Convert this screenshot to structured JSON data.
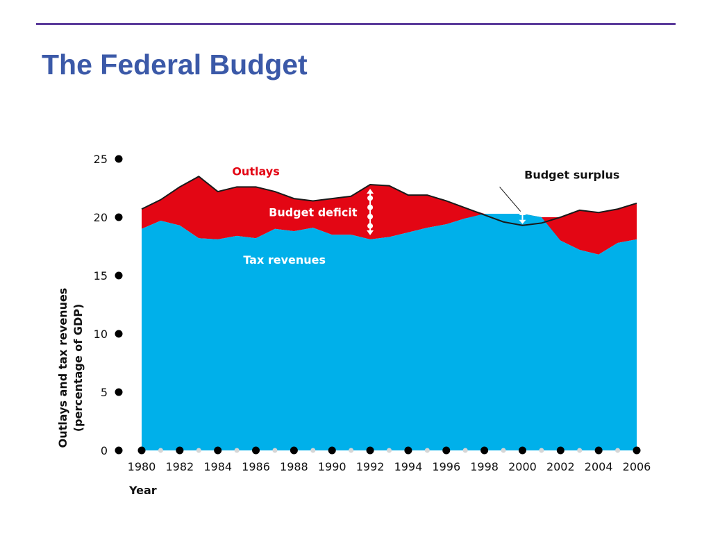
{
  "page": {
    "title": "The Federal Budget"
  },
  "colors": {
    "rule": "#5b3b9b",
    "title": "#3b59a8",
    "tax_revenues": "#00b0ea",
    "deficit": "#e30614",
    "surplus": "#1aa89c",
    "outlays_line": "#1a1a1a"
  },
  "chart_data": {
    "type": "area",
    "title": "",
    "xlabel": "Year",
    "ylabel": "Outlays and tax revenues",
    "ylabel2": "(percentage of GDP)",
    "ylim": [
      0,
      25
    ],
    "xlim": [
      1980,
      2006
    ],
    "y_ticks": [
      0,
      5,
      10,
      15,
      20,
      25
    ],
    "x_ticks": [
      1980,
      1982,
      1984,
      1986,
      1988,
      1990,
      1992,
      1994,
      1996,
      1998,
      2000,
      2002,
      2004,
      2006
    ],
    "x": [
      1980,
      1981,
      1982,
      1983,
      1984,
      1985,
      1986,
      1987,
      1988,
      1989,
      1990,
      1991,
      1992,
      1993,
      1994,
      1995,
      1996,
      1997,
      1998,
      1999,
      2000,
      2001,
      2002,
      2003,
      2004,
      2005,
      2006
    ],
    "series": [
      {
        "name": "Outlays",
        "values": [
          20.7,
          21.5,
          22.6,
          23.5,
          22.2,
          22.6,
          22.6,
          22.2,
          21.6,
          21.4,
          21.6,
          21.8,
          22.8,
          22.7,
          21.9,
          21.9,
          21.4,
          20.8,
          20.2,
          19.6,
          19.3,
          19.5,
          20.0,
          20.6,
          20.4,
          20.7,
          21.2
        ]
      },
      {
        "name": "Tax revenues",
        "values": [
          19.0,
          19.7,
          19.3,
          18.2,
          18.1,
          18.4,
          18.2,
          19.0,
          18.8,
          19.1,
          18.5,
          18.5,
          18.1,
          18.3,
          18.7,
          19.1,
          19.4,
          19.9,
          20.3,
          20.3,
          20.3,
          20.0,
          18.0,
          17.2,
          16.8,
          17.8,
          18.1
        ]
      }
    ],
    "annotations": [
      {
        "label": "Outlays",
        "x": 1986,
        "y": 23.6
      },
      {
        "label": "Budget deficit",
        "x": 1989,
        "y": 20.1
      },
      {
        "label": "Tax revenues",
        "x": 1987.5,
        "y": 16
      },
      {
        "label": "Budget surplus",
        "x": 2002.6,
        "y": 23.3
      }
    ]
  }
}
